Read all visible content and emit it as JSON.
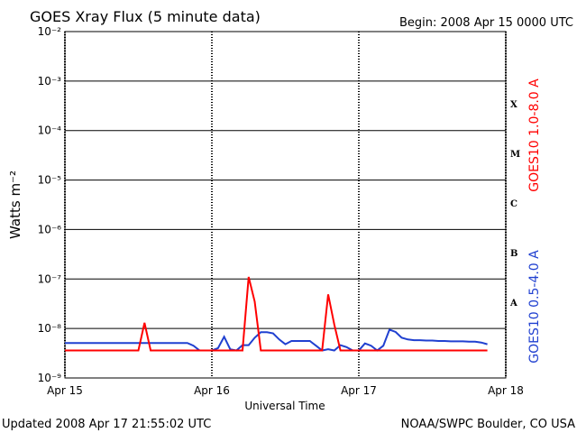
{
  "chart_data": {
    "type": "line",
    "title": "GOES Xray Flux (5 minute data)",
    "subtitle": "Begin:  2008 Apr 15 0000 UTC",
    "y_label": "Watts m⁻²",
    "x_label": "Universal Time",
    "footer_left": "Updated 2008 Apr 17 21:55:02 UTC",
    "footer_right": "NOAA/SWPC Boulder, CO USA",
    "flare_classes": [
      "X",
      "M",
      "C",
      "B",
      "A"
    ],
    "log_y": true,
    "grid": true,
    "xlim": [
      0,
      72
    ],
    "xticks": [
      {
        "value": 0,
        "label": "Apr 15"
      },
      {
        "value": 24,
        "label": "Apr 16"
      },
      {
        "value": 48,
        "label": "Apr 17"
      },
      {
        "value": 72,
        "label": "Apr 18"
      }
    ],
    "ylim": [
      1e-09,
      0.01
    ],
    "yticks": [
      {
        "value": 1e-09,
        "label": "10⁻⁹"
      },
      {
        "value": 1e-08,
        "label": "10⁻⁸"
      },
      {
        "value": 1e-07,
        "label": "10⁻⁷"
      },
      {
        "value": 1e-06,
        "label": "10⁻⁶"
      },
      {
        "value": 1e-05,
        "label": "10⁻⁵"
      },
      {
        "value": 0.0001,
        "label": "10⁻⁴"
      },
      {
        "value": 0.001,
        "label": "10⁻³"
      },
      {
        "value": 0.01,
        "label": "10⁻²"
      }
    ],
    "x": [
      0,
      1,
      2,
      3,
      4,
      5,
      6,
      7,
      8,
      9,
      10,
      11,
      12,
      13,
      14,
      15,
      16,
      17,
      18,
      19,
      20,
      21,
      22,
      23,
      24,
      25,
      26,
      27,
      28,
      29,
      30,
      31,
      32,
      33,
      34,
      35,
      36,
      37,
      38,
      39,
      40,
      41,
      42,
      43,
      44,
      45,
      46,
      47,
      48,
      49,
      50,
      51,
      52,
      53,
      54,
      55,
      56,
      57,
      58,
      59,
      60,
      61,
      62,
      63,
      64,
      65,
      66,
      67,
      68,
      69
    ],
    "series": [
      {
        "name": "GOES10 1.0-8.0 A",
        "color": "#ff0000",
        "values": [
          3.6e-09,
          3.6e-09,
          3.6e-09,
          3.6e-09,
          3.6e-09,
          3.6e-09,
          3.6e-09,
          3.6e-09,
          3.6e-09,
          3.6e-09,
          3.6e-09,
          3.6e-09,
          3.6e-09,
          1.3e-08,
          3.6e-09,
          3.6e-09,
          3.6e-09,
          3.6e-09,
          3.6e-09,
          3.6e-09,
          3.6e-09,
          3.6e-09,
          3.6e-09,
          3.6e-09,
          3.6e-09,
          3.6e-09,
          3.6e-09,
          3.6e-09,
          3.6e-09,
          3.6e-09,
          1.1e-07,
          3.5e-08,
          3.6e-09,
          3.6e-09,
          3.6e-09,
          3.6e-09,
          3.6e-09,
          3.6e-09,
          3.6e-09,
          3.6e-09,
          3.6e-09,
          3.6e-09,
          3.6e-09,
          4.9e-08,
          1.2e-08,
          3.6e-09,
          3.6e-09,
          3.6e-09,
          3.6e-09,
          3.6e-09,
          3.6e-09,
          3.6e-09,
          3.6e-09,
          3.6e-09,
          3.6e-09,
          3.6e-09,
          3.6e-09,
          3.6e-09,
          3.6e-09,
          3.6e-09,
          3.6e-09,
          3.6e-09,
          3.6e-09,
          3.6e-09,
          3.6e-09,
          3.6e-09,
          3.6e-09,
          3.6e-09,
          3.6e-09,
          3.6e-09
        ]
      },
      {
        "name": "GOES10 0.5-4.0 A",
        "color": "#2040d0",
        "values": [
          5.1e-09,
          5.1e-09,
          5.1e-09,
          5.1e-09,
          5.1e-09,
          5.1e-09,
          5.1e-09,
          5.1e-09,
          5.1e-09,
          5.1e-09,
          5.1e-09,
          5.1e-09,
          5.1e-09,
          5.1e-09,
          5.1e-09,
          5.1e-09,
          5.1e-09,
          5.1e-09,
          5.1e-09,
          5.1e-09,
          5.1e-09,
          4.5e-09,
          3.6e-09,
          3.6e-09,
          3.6e-09,
          4e-09,
          6.8e-09,
          3.8e-09,
          3.6e-09,
          4.6e-09,
          4.6e-09,
          6.5e-09,
          8.4e-09,
          8.4e-09,
          8e-09,
          6e-09,
          4.8e-09,
          5.6e-09,
          5.6e-09,
          5.6e-09,
          5.6e-09,
          4.5e-09,
          3.6e-09,
          3.8e-09,
          3.6e-09,
          4.6e-09,
          4.2e-09,
          3.6e-09,
          3.6e-09,
          5e-09,
          4.5e-09,
          3.6e-09,
          4.5e-09,
          9.5e-09,
          8.5e-09,
          6.5e-09,
          6e-09,
          5.8e-09,
          5.8e-09,
          5.7e-09,
          5.7e-09,
          5.6e-09,
          5.6e-09,
          5.5e-09,
          5.5e-09,
          5.5e-09,
          5.4e-09,
          5.4e-09,
          5.2e-09,
          4.8e-09
        ]
      }
    ]
  }
}
